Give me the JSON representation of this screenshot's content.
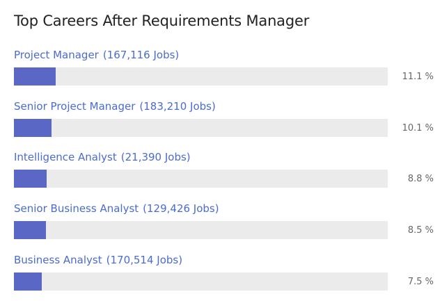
{
  "chart_data": {
    "type": "bar",
    "orientation": "horizontal",
    "title": "Top Careers After Requirements Manager",
    "xlabel": "",
    "ylabel": "",
    "xlim": [
      0,
      100
    ],
    "unit": "%",
    "colors": {
      "bar": "#5b67c4",
      "track": "#ebebeb",
      "label": "#4a6bd2"
    },
    "categories": [
      "Project Manager",
      "Senior Project Manager",
      "Intelligence Analyst",
      "Senior Business Analyst",
      "Business Analyst"
    ],
    "jobs": [
      "(167,116 Jobs)",
      "(183,210 Jobs)",
      "(21,390 Jobs)",
      "(129,426 Jobs)",
      "(170,514 Jobs)"
    ],
    "values": [
      11.1,
      10.1,
      8.8,
      8.5,
      7.5
    ],
    "value_labels": [
      "11.1 %",
      "10.1 %",
      "8.8 %",
      "8.5 %",
      "7.5 %"
    ]
  }
}
